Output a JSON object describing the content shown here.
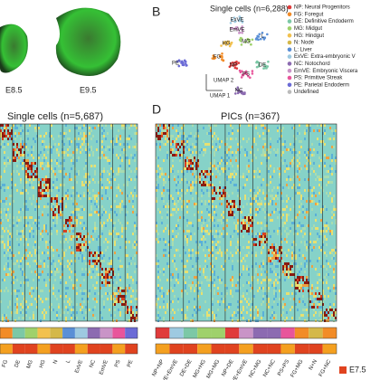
{
  "panels": {
    "b": "B",
    "d": "D"
  },
  "embryos": [
    "E8.5",
    "E9.5"
  ],
  "umap": {
    "title": "Single cells (n=6,288)",
    "axis_y": "UMAP 2",
    "axis_x": "UMAP 1",
    "clusters": [
      {
        "label": "ExVE",
        "color": "#9ecae1"
      },
      {
        "label": "EmVE",
        "color": "#c994c7"
      },
      {
        "label": "HG",
        "color": "#f2c14e"
      },
      {
        "label": "MG",
        "color": "#9fd16b"
      },
      {
        "label": "L",
        "color": "#5a8fd6"
      },
      {
        "label": "FG",
        "color": "#f28c28"
      },
      {
        "label": "NP",
        "color": "#e03b3b"
      },
      {
        "label": "DE",
        "color": "#7cc8a6"
      },
      {
        "label": "PS",
        "color": "#e8559b"
      },
      {
        "label": "NC",
        "color": "#8c6bb1"
      },
      {
        "label": "PE",
        "color": "#6b6bd6"
      }
    ]
  },
  "legend": [
    {
      "label": "NP: Neural Progenitors",
      "color": "#e03b3b"
    },
    {
      "label": "FG: Foregut",
      "color": "#f28c28"
    },
    {
      "label": "DE: Definitive Endoderm",
      "color": "#7cc8a6"
    },
    {
      "label": "MG: Midgut",
      "color": "#9fd16b"
    },
    {
      "label": "HG: Hindgut",
      "color": "#f2c14e"
    },
    {
      "label": "N: Node",
      "color": "#d4b84a"
    },
    {
      "label": "L: Liver",
      "color": "#5a8fd6"
    },
    {
      "label": "ExVE: Extra-embryonic V",
      "color": "#9ecae1"
    },
    {
      "label": "NC: Notochord",
      "color": "#8c6bb1"
    },
    {
      "label": "EmVE: Embryonic Viscera",
      "color": "#c994c7"
    },
    {
      "label": "PS: Primitive Streak",
      "color": "#e8559b"
    },
    {
      "label": "PE: Parietal Endoderm",
      "color": "#6b6bd6"
    },
    {
      "label": "Undefined",
      "color": "#bbbbbb"
    }
  ],
  "left_heatmap": {
    "title": "Single cells (n=5,687)",
    "columns": [
      "FG",
      "DE",
      "MG",
      "HG",
      "N",
      "L",
      "ExVE",
      "NC",
      "EmVE",
      "PS",
      "PE"
    ]
  },
  "right_heatmap": {
    "title": "PICs (n=367)",
    "columns": [
      "NP+NP",
      "ExVE+EmVE",
      "DE+DE",
      "MG+HG",
      "MG+MG",
      "NP+DE",
      "EmVE+EmVE",
      "NC+MG",
      "NC+NC",
      "PS+PS",
      "FG+MG",
      "N+N",
      "FG+NC"
    ],
    "stage": "E7.5"
  }
}
